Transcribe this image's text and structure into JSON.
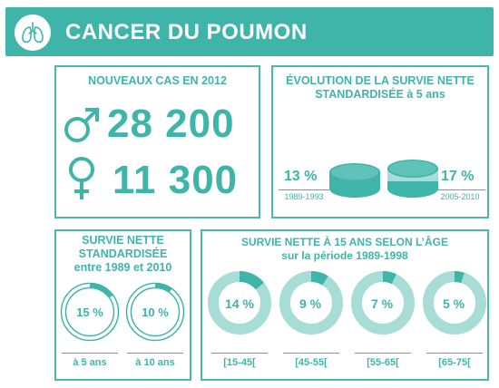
{
  "header": {
    "title": "CANCER DU POUMON",
    "icon": "lungs-icon"
  },
  "new_cases": {
    "title": "NOUVEAUX CAS EN 2012",
    "male": {
      "icon": "male-symbol-icon",
      "value": "28 200"
    },
    "female": {
      "icon": "female-symbol-icon",
      "value": "11 300"
    }
  },
  "evolution": {
    "title_line1": "ÉVOLUTION DE LA SURVIE NETTE",
    "title_line2": "STANDARDISÉE à 5 ans",
    "left": {
      "value": "13 %",
      "period": "1989-1993",
      "fraction": 0.13
    },
    "right": {
      "value": "17 %",
      "period": "2005-2010",
      "fraction": 0.17
    }
  },
  "standardised": {
    "title_line1": "SURVIE NETTE",
    "title_line2": "STANDARDISÉE",
    "title_line3": "entre 1989 et 2010",
    "rings": [
      {
        "value": "15 %",
        "fraction": 0.15,
        "caption": "à 5 ans"
      },
      {
        "value": "10 %",
        "fraction": 0.1,
        "caption": "à 10 ans"
      }
    ]
  },
  "age": {
    "title_line1": "SURVIE NETTE À 15 ANS SELON L’ÂGE",
    "title_line2": "sur la période 1989-1998",
    "rings": [
      {
        "value": "14 %",
        "fraction": 0.14,
        "caption": "[15-45["
      },
      {
        "value": "9 %",
        "fraction": 0.09,
        "caption": "[45-55["
      },
      {
        "value": "7 %",
        "fraction": 0.07,
        "caption": "[55-65["
      },
      {
        "value": "5 %",
        "fraction": 0.05,
        "caption": "[65-75["
      }
    ]
  },
  "colors": {
    "accent": "#3fb5aa",
    "light": "#a8dcd6",
    "header_text": "#ffffff"
  }
}
